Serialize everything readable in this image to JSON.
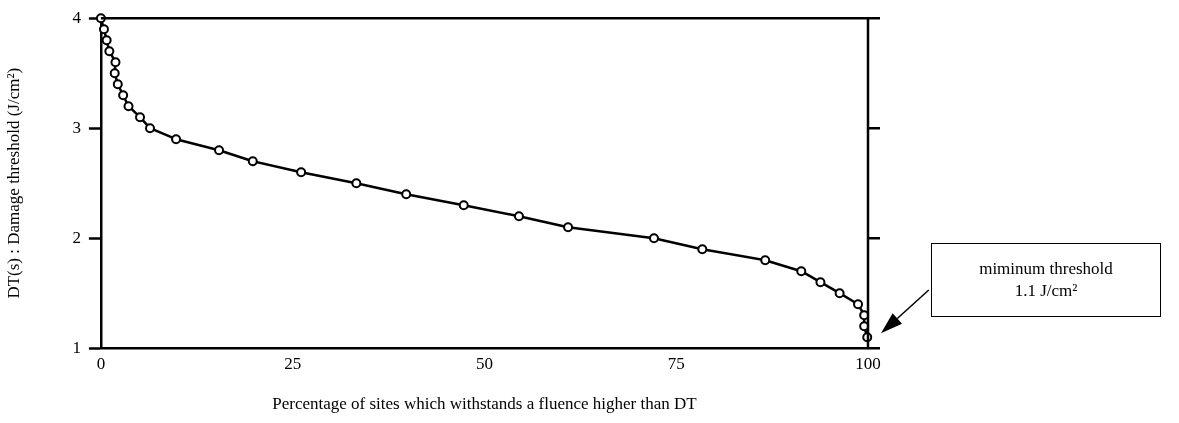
{
  "chart_data": {
    "type": "line",
    "xlabel": "Percentage of sites which withstands a fluence higher than DT",
    "ylabel": "DT(s) : Damage threshold (J/cm²)",
    "x": [
      0,
      0.4,
      0.75,
      1.1,
      1.9,
      1.8,
      2.2,
      2.9,
      3.6,
      5.1,
      6.4,
      9.8,
      15.4,
      19.8,
      26.1,
      33.3,
      39.8,
      47.3,
      54.5,
      60.9,
      72.1,
      78.4,
      86.6,
      91.3,
      93.8,
      96.3,
      98.7,
      99.5,
      99.5,
      99.9
    ],
    "series": [
      {
        "color": "#000000",
        "values": [
          4.0,
          3.9,
          3.8,
          3.7,
          3.6,
          3.5,
          3.4,
          3.3,
          3.2,
          3.1,
          3.0,
          2.9,
          2.8,
          2.7,
          2.6,
          2.5,
          2.4,
          2.3,
          2.2,
          2.1,
          2.0,
          1.9,
          1.8,
          1.7,
          1.6,
          1.5,
          1.4,
          1.3,
          1.2,
          1.1
        ]
      }
    ],
    "xlim": [
      0,
      100
    ],
    "xticks": [
      0,
      25,
      50,
      75,
      100
    ],
    "ylim": [
      1,
      4
    ],
    "yticks": [
      1,
      2,
      3,
      4
    ],
    "marker": "circle",
    "line_style": "solid",
    "grid": false,
    "legend": false,
    "annotations": [
      "miminum threshold\n1.1 J/cm²"
    ]
  }
}
